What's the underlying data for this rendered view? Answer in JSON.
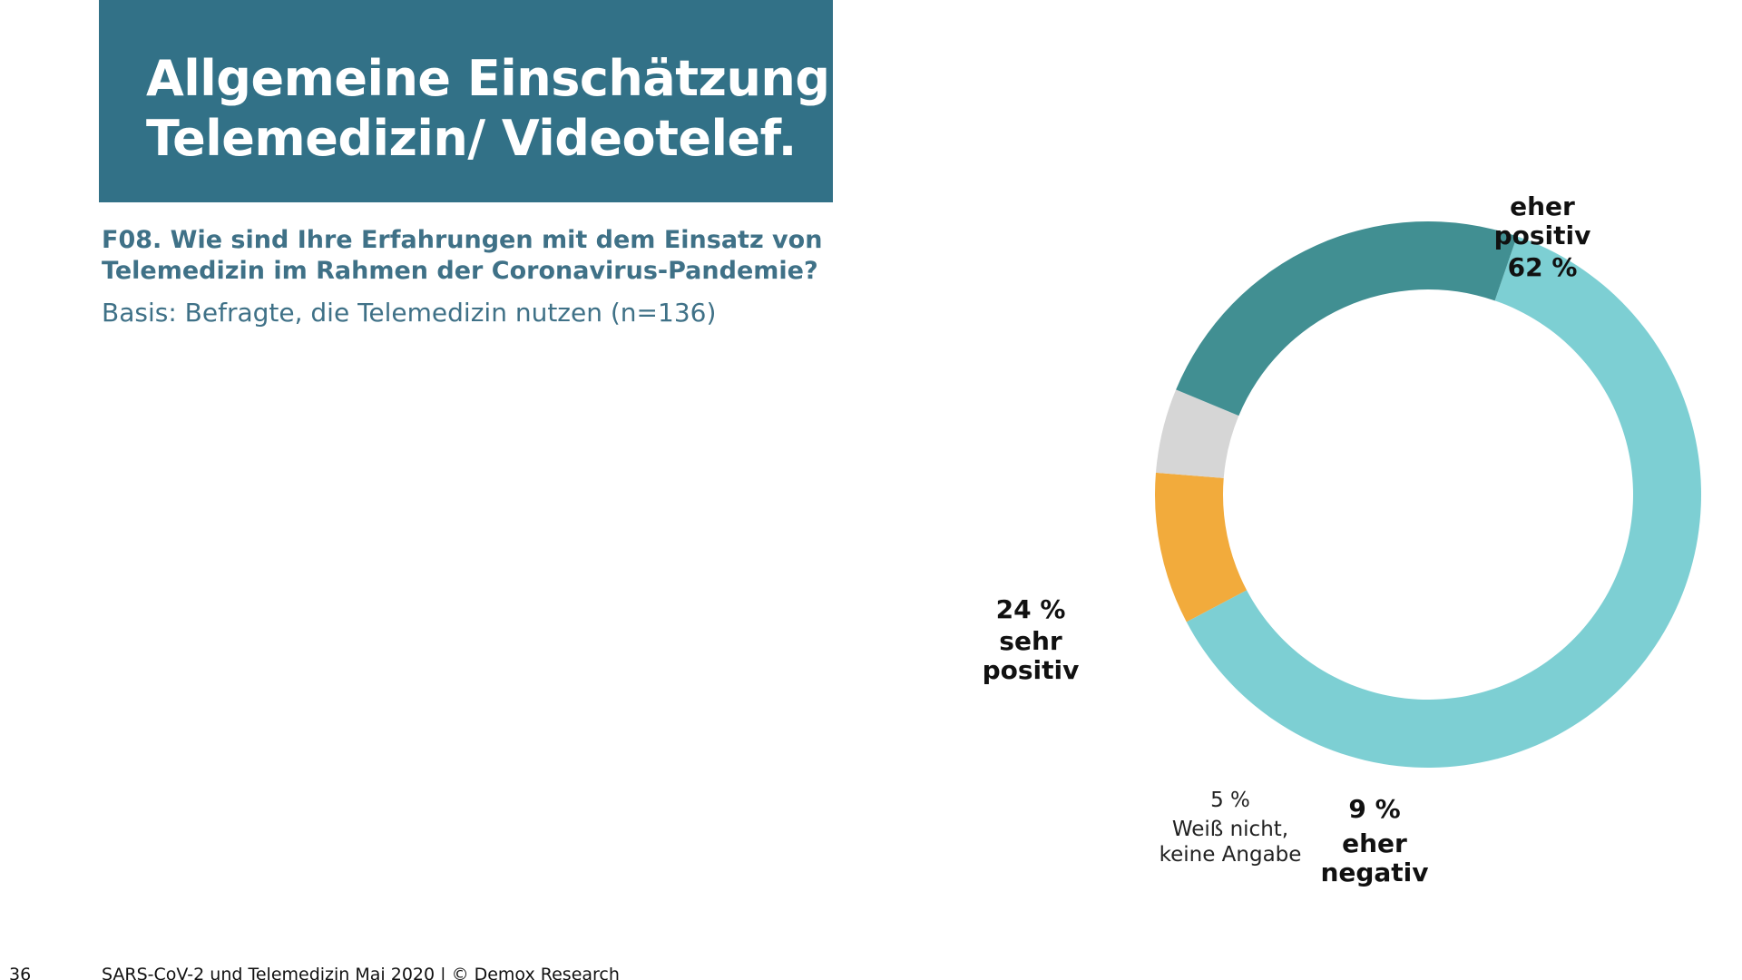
{
  "title": {
    "line1": "Allgemeine Einschätzung",
    "line2": "Telemedizin/ Videotelef."
  },
  "question": {
    "line1": "F08. Wie sind Ihre Erfahrungen mit dem Einsatz von",
    "line2": "Telemedizin im Rahmen der Coronavirus-Pandemie?"
  },
  "basis": "Basis: Befragte, die Telemedizin nutzen (n=136)",
  "footer": {
    "page_number": "36",
    "source": "SARS-CoV-2 und Telemedizin Mai 2020 | © Demox Research"
  },
  "chart_data": {
    "type": "pie",
    "variant": "donut",
    "title": "",
    "unit": "%",
    "slices": [
      {
        "label_lines": [
          "eher",
          "positiv"
        ],
        "value": 62,
        "value_text": "62 %",
        "color": "#7dcfd3"
      },
      {
        "label_lines": [
          "eher",
          "negativ"
        ],
        "value": 9,
        "value_text": "9 %",
        "color": "#f2ab3c"
      },
      {
        "label_lines": [
          "Weiß nicht,",
          "keine Angabe"
        ],
        "value": 5,
        "value_text": "5 %",
        "color": "#d6d6d6"
      },
      {
        "label_lines": [
          "sehr",
          "positiv"
        ],
        "value": 24,
        "value_text": "24 %",
        "color": "#418f92"
      }
    ]
  },
  "colors": {
    "title_background": "#327187",
    "text_accent": "#3f7187"
  }
}
